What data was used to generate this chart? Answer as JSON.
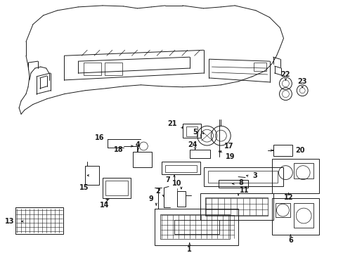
{
  "bg_color": "#ffffff",
  "fig_width": 4.89,
  "fig_height": 3.6,
  "dpi": 100,
  "lc": "#1a1a1a",
  "lw": 0.7,
  "fs": 6.5
}
